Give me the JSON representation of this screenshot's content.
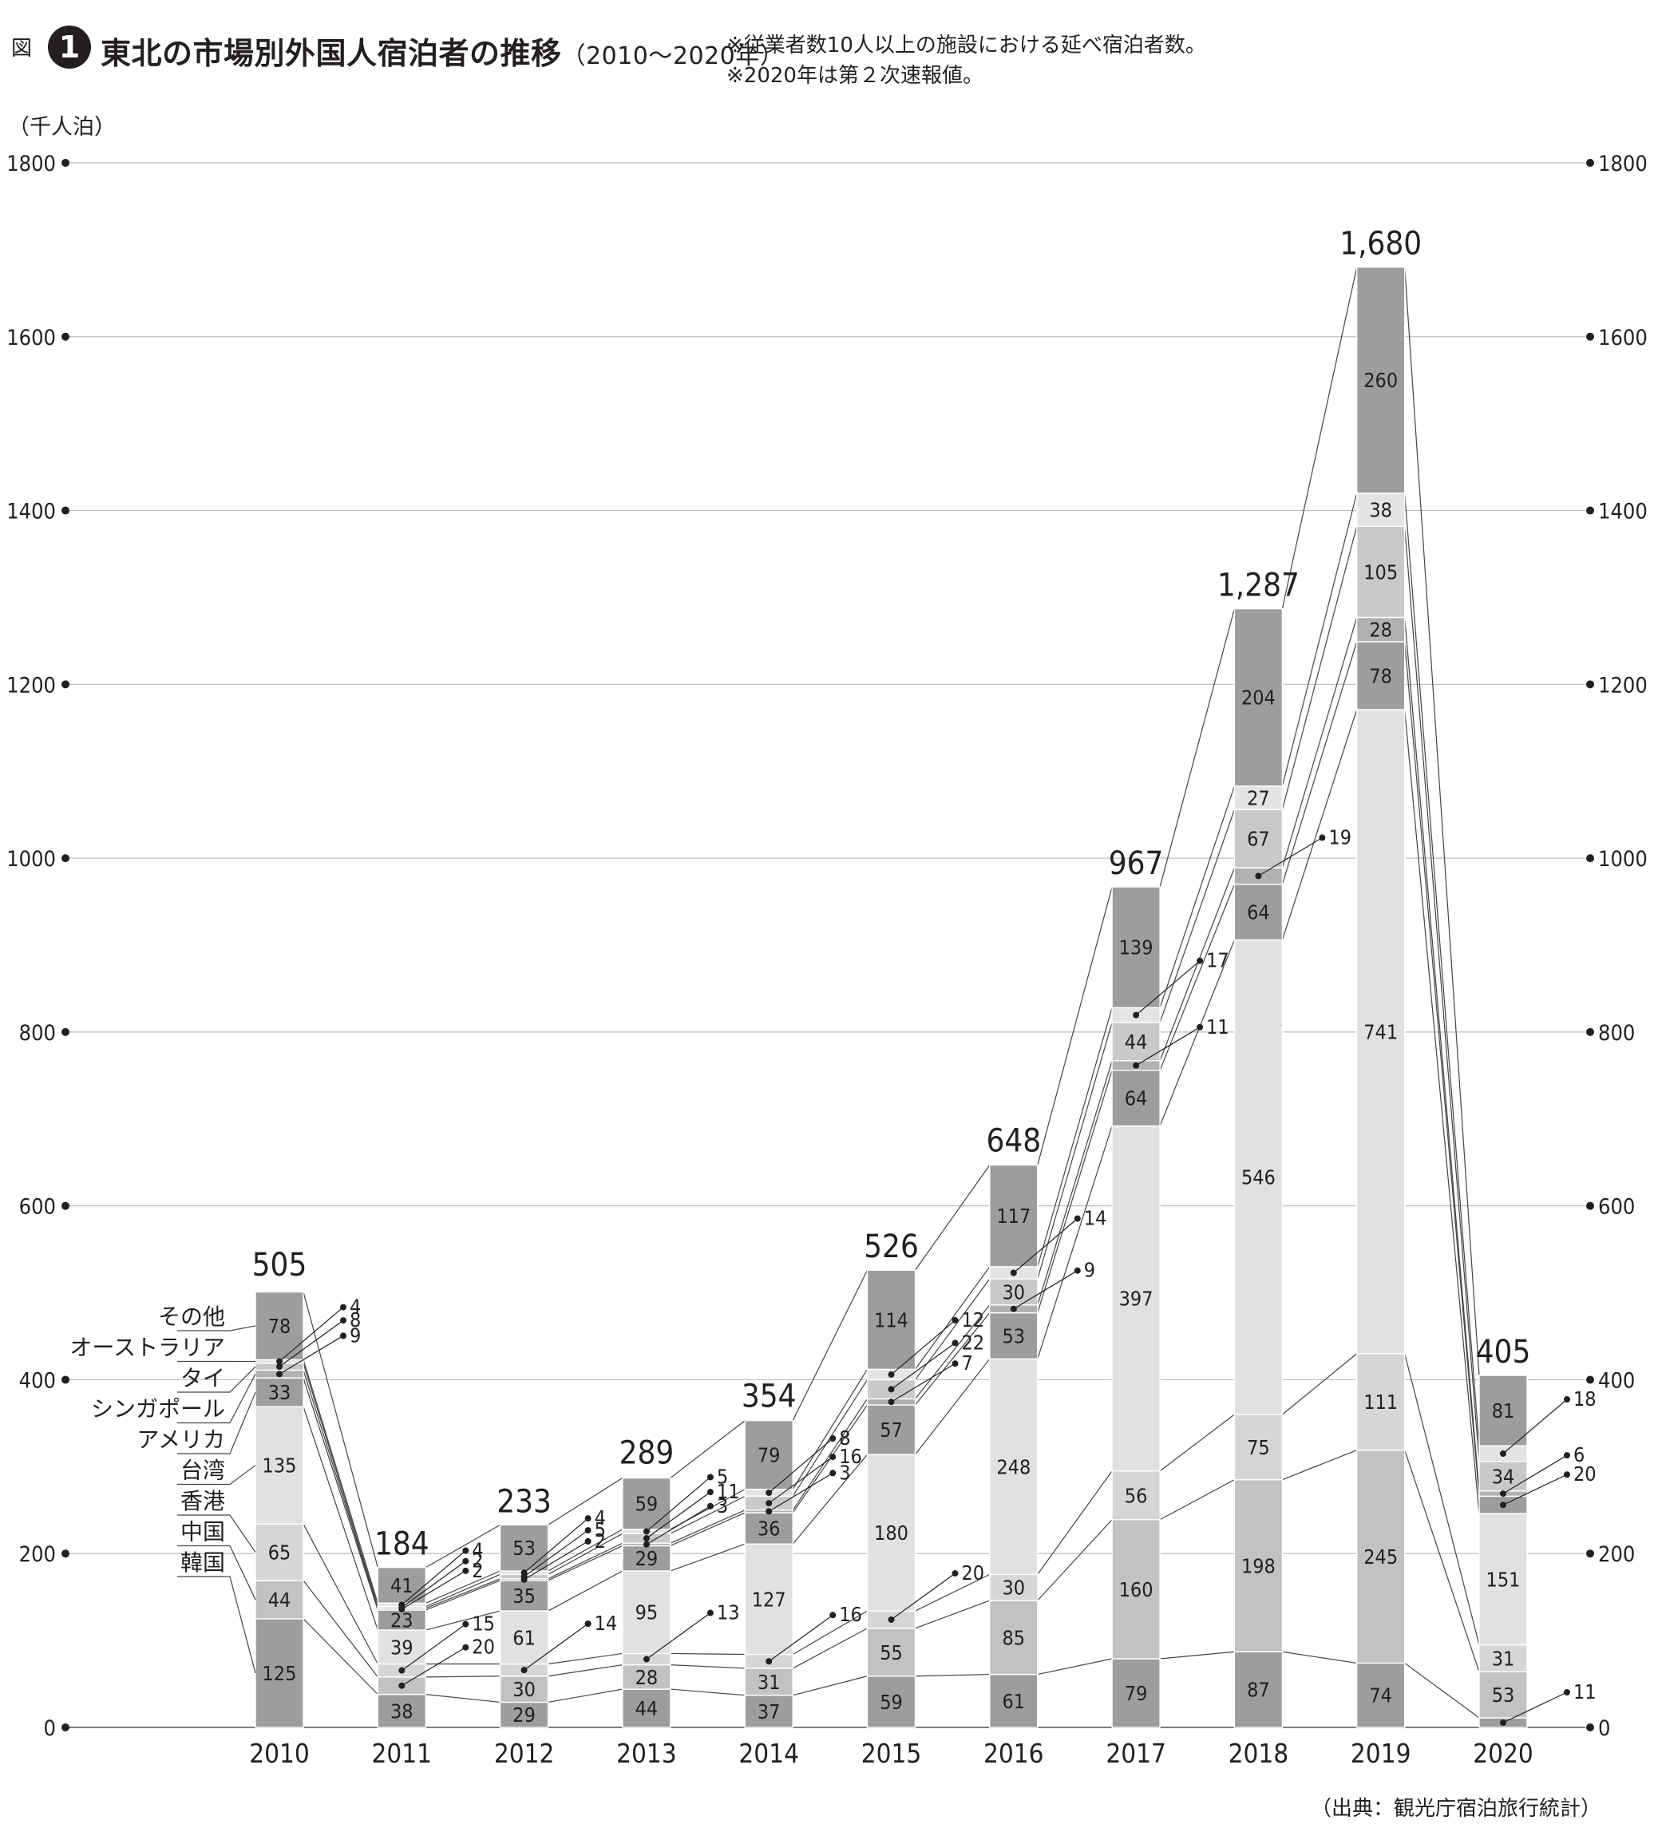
{
  "figure": {
    "prefix": "図",
    "number": "1",
    "title": "東北の市場別外国人宿泊者の推移",
    "period": "（2010〜2020年）",
    "note1": "※従業者数10人以上の施設における延べ宿泊者数。",
    "note2": "※2020年は第２次速報値。",
    "source": "（出典：観光庁宿泊旅行統計）"
  },
  "chart_data": {
    "type": "bar",
    "stacked": true,
    "ylabel": "（千人泊）",
    "ylim": [
      0,
      1800
    ],
    "yticks": [
      0,
      200,
      400,
      600,
      800,
      1000,
      1200,
      1400,
      1600,
      1800
    ],
    "grid": true,
    "y_axis_both_sides": true,
    "categories": [
      "2010",
      "2011",
      "2012",
      "2013",
      "2014",
      "2015",
      "2016",
      "2017",
      "2018",
      "2019",
      "2020"
    ],
    "totals": [
      505,
      184,
      233,
      289,
      354,
      526,
      648,
      967,
      1287,
      1680,
      405
    ],
    "total_labels": [
      "505",
      "184",
      "233",
      "289",
      "354",
      "526",
      "648",
      "967",
      "1,287",
      "1,680",
      "405"
    ],
    "legend_position": "left of 2010 bar",
    "series": [
      {
        "name": "韓国",
        "color": "#9d9d9d",
        "values": [
          125,
          38,
          29,
          44,
          37,
          59,
          61,
          79,
          87,
          74,
          11
        ]
      },
      {
        "name": "中国",
        "color": "#c2c2c2",
        "values": [
          44,
          20,
          30,
          28,
          31,
          55,
          85,
          160,
          198,
          245,
          53
        ]
      },
      {
        "name": "香港",
        "color": "#d6d6d6",
        "values": [
          65,
          15,
          14,
          13,
          16,
          20,
          30,
          56,
          75,
          111,
          31
        ]
      },
      {
        "name": "台湾",
        "color": "#e1e1e1",
        "values": [
          135,
          39,
          61,
          95,
          127,
          180,
          248,
          397,
          546,
          741,
          151
        ]
      },
      {
        "name": "アメリカ",
        "color": "#9d9d9d",
        "values": [
          33,
          23,
          35,
          29,
          36,
          57,
          53,
          64,
          64,
          78,
          20
        ]
      },
      {
        "name": "シンガポール",
        "color": "#b1b1b1",
        "values": [
          9,
          2,
          2,
          3,
          3,
          7,
          9,
          11,
          19,
          28,
          6
        ]
      },
      {
        "name": "タイ",
        "color": "#c9c9c9",
        "values": [
          8,
          2,
          5,
          11,
          16,
          22,
          30,
          44,
          67,
          105,
          34
        ]
      },
      {
        "name": "オーストラリア",
        "color": "#e4e4e4",
        "values": [
          4,
          4,
          4,
          5,
          8,
          12,
          14,
          17,
          27,
          38,
          18
        ]
      },
      {
        "name": "その他",
        "color": "#9d9d9d",
        "values": [
          78,
          41,
          53,
          59,
          79,
          114,
          117,
          139,
          204,
          260,
          81
        ]
      }
    ]
  }
}
